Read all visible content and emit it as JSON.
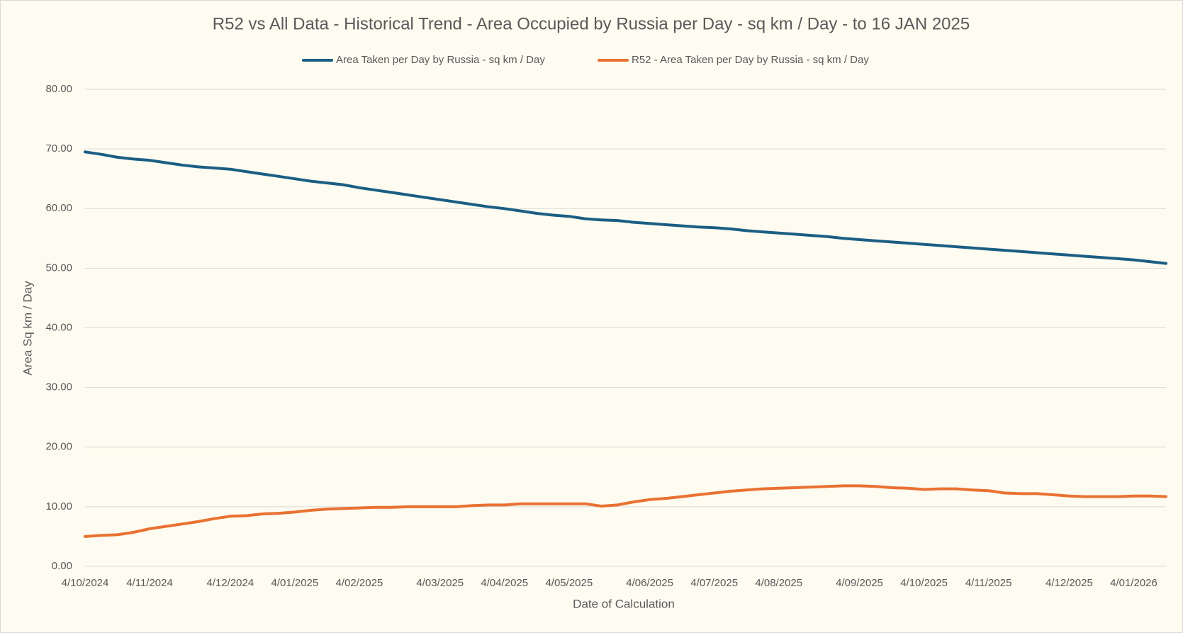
{
  "chart_data": {
    "type": "line",
    "title": "R52 vs All Data - Historical Trend - Area Occupied by Russia per Day - sq km / Day - to 16 JAN 2025",
    "x_label": "Date of Calculation",
    "y_label": "Area Sq km / Day",
    "categories": [
      "4/10/2024",
      null,
      null,
      null,
      "4/11/2024",
      null,
      null,
      null,
      null,
      "4/12/2024",
      null,
      null,
      null,
      "4/01/2025",
      null,
      null,
      null,
      "4/02/2025",
      null,
      null,
      null,
      null,
      "4/03/2025",
      null,
      null,
      null,
      "4/04/2025",
      null,
      null,
      null,
      "4/05/2025",
      null,
      null,
      null,
      null,
      "4/06/2025",
      null,
      null,
      null,
      "4/07/2025",
      null,
      null,
      null,
      "4/08/2025",
      null,
      null,
      null,
      null,
      "4/09/2025",
      null,
      null,
      null,
      "4/10/2025",
      null,
      null,
      null,
      "4/11/2025",
      null,
      null,
      null,
      null,
      "4/12/2025",
      null,
      null,
      null,
      "4/01/2026",
      null,
      null
    ],
    "series": [
      {
        "name": "Area Taken per Day by Russia - sq km / Day",
        "color": "#1b5e84",
        "values": [
          69.5,
          69.1,
          68.6,
          68.3,
          68.1,
          67.7,
          67.3,
          67.0,
          66.8,
          66.6,
          66.2,
          65.8,
          65.4,
          65.0,
          64.6,
          64.3,
          64.0,
          63.5,
          63.1,
          62.7,
          62.3,
          61.9,
          61.5,
          61.1,
          60.7,
          60.3,
          60.0,
          59.6,
          59.2,
          58.9,
          58.7,
          58.3,
          58.1,
          58.0,
          57.7,
          57.5,
          57.3,
          57.1,
          56.9,
          56.8,
          56.6,
          56.3,
          56.1,
          55.9,
          55.7,
          55.5,
          55.3,
          55.0,
          54.8,
          54.6,
          54.4,
          54.2,
          54.0,
          53.8,
          53.6,
          53.4,
          53.2,
          53.0,
          52.8,
          52.6,
          52.4,
          52.2,
          52.0,
          51.8,
          51.6,
          51.4,
          51.1,
          50.8
        ]
      },
      {
        "name": "R52 - Area Taken per Day by Russia - sq km / Day",
        "color": "#e97132",
        "values": [
          5.0,
          5.2,
          5.3,
          5.7,
          6.3,
          6.7,
          7.1,
          7.5,
          8.0,
          8.4,
          8.5,
          8.8,
          8.9,
          9.1,
          9.4,
          9.6,
          9.7,
          9.8,
          9.9,
          9.9,
          10.0,
          10.0,
          10.0,
          10.0,
          10.2,
          10.3,
          10.3,
          10.5,
          10.5,
          10.5,
          10.5,
          10.5,
          10.1,
          10.3,
          10.8,
          11.2,
          11.4,
          11.7,
          12.0,
          12.3,
          12.6,
          12.8,
          13.0,
          13.1,
          13.2,
          13.3,
          13.4,
          13.5,
          13.5,
          13.4,
          13.2,
          13.1,
          12.9,
          13.0,
          13.0,
          12.8,
          12.7,
          12.3,
          12.2,
          12.2,
          12.0,
          11.8,
          11.7,
          11.7,
          11.7,
          11.8,
          11.8,
          11.7
        ]
      }
    ],
    "ylim": [
      0,
      80
    ],
    "yticks": [
      {
        "value": 0,
        "label": "0.00"
      },
      {
        "value": 10,
        "label": "10.00"
      },
      {
        "value": 20,
        "label": "20.00"
      },
      {
        "value": 30,
        "label": "30.00"
      },
      {
        "value": 40,
        "label": "40.00"
      },
      {
        "value": 50,
        "label": "50.00"
      },
      {
        "value": 60,
        "label": "60.00"
      },
      {
        "value": 70,
        "label": "70.00"
      },
      {
        "value": 80,
        "label": "80.00"
      }
    ],
    "grid": true,
    "legend": "top"
  }
}
